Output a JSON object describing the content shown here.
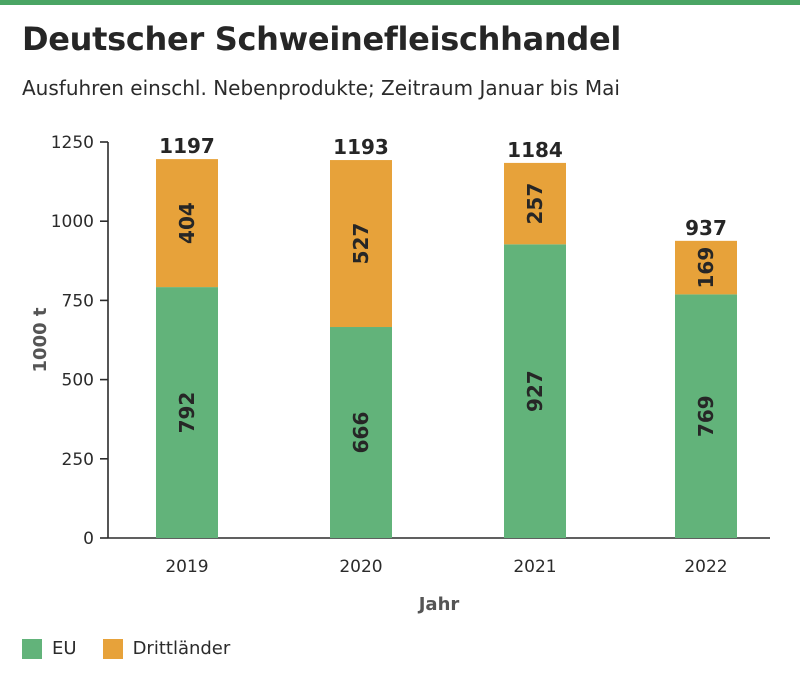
{
  "header": {
    "title": "Deutscher Schweinefleischhandel",
    "subtitle": "Ausfuhren einschl. Nebenprodukte; Zeitraum Januar bis Mai"
  },
  "colors": {
    "accent": "#4aa564",
    "eu": "#62b37a",
    "third": "#e7a23a"
  },
  "chart_data": {
    "type": "bar",
    "stacked": true,
    "categories": [
      "2019",
      "2020",
      "2021",
      "2022"
    ],
    "series": [
      {
        "name": "EU",
        "values": [
          792,
          666,
          927,
          769
        ]
      },
      {
        "name": "Drittländer",
        "values": [
          404,
          527,
          257,
          169
        ]
      }
    ],
    "totals": [
      1197,
      1193,
      1184,
      937
    ],
    "xlabel": "Jahr",
    "ylabel": "1000 t",
    "ylim": [
      0,
      1250
    ],
    "yticks": [
      0,
      250,
      500,
      750,
      1000,
      1250
    ],
    "grid": false,
    "legend_position": "bottom-left"
  }
}
